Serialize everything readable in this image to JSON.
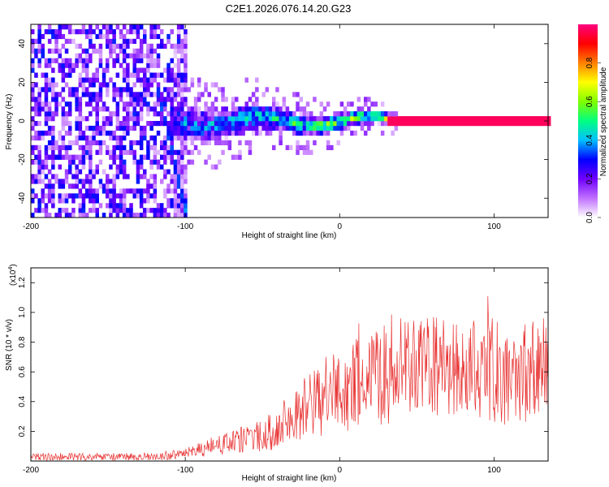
{
  "chart_data": [
    {
      "type": "heatmap",
      "title": "C2E1.2026.076.14.20.G23",
      "xlabel": "Height of straight line (km)",
      "ylabel": "Frequency (Hz)",
      "xlim": [
        -200,
        135
      ],
      "ylim": [
        -50,
        50
      ],
      "xticks": [
        -200,
        -100,
        0,
        100
      ],
      "yticks": [
        40,
        20,
        0,
        -20,
        -40
      ],
      "colorbar": {
        "label": "Normalized spectral amplitude",
        "range": [
          0.0,
          1.0
        ],
        "ticks": [
          "0.0",
          "0.2",
          "0.4",
          "0.6",
          "0.8"
        ],
        "colors": [
          "#ffffff",
          "#c070ff",
          "#7000ff",
          "#0000ff",
          "#00c0ff",
          "#00ff80",
          "#80ff00",
          "#ffff00",
          "#ff8000",
          "#ff0000",
          "#ff0080"
        ]
      },
      "description_regions": {
        "noise_region_km": [
          -200,
          -100
        ],
        "chirp_track": {
          "from": [
            -120,
            20
          ],
          "to": [
            -100,
            -50
          ]
        },
        "signal_band_km": [
          -110,
          135
        ],
        "signal_center_hz": 0
      }
    },
    {
      "type": "line",
      "xlabel": "Height of straight line (km)",
      "ylabel": "SNR (10 * v/v)",
      "y_multiplier": "(x10",
      "y_multiplier_exp": "4",
      "xlim": [
        -200,
        135
      ],
      "ylim": [
        0,
        1.3
      ],
      "xticks": [
        -200,
        -100,
        0,
        100
      ],
      "yticks": [
        0.2,
        0.4,
        0.6,
        0.8,
        1.0,
        1.2
      ],
      "ytick_labels": [
        "0.2",
        "0.4",
        "0.6",
        "0.8",
        "1.0",
        "1.2"
      ],
      "color": "#e83030",
      "series": [
        {
          "name": "SNR",
          "x": [
            -200,
            -180,
            -160,
            -140,
            -120,
            -100,
            -90,
            -80,
            -70,
            -60,
            -50,
            -40,
            -30,
            -20,
            -10,
            0,
            10,
            20,
            30,
            40,
            50,
            60,
            70,
            80,
            90,
            100,
            110,
            120,
            130,
            135
          ],
          "values": [
            0.03,
            0.03,
            0.03,
            0.03,
            0.03,
            0.05,
            0.08,
            0.11,
            0.13,
            0.16,
            0.18,
            0.24,
            0.32,
            0.4,
            0.46,
            0.5,
            0.54,
            0.58,
            0.63,
            0.66,
            0.66,
            0.66,
            0.66,
            0.64,
            0.66,
            0.65,
            0.62,
            0.62,
            0.65,
            0.7
          ]
        }
      ]
    }
  ]
}
